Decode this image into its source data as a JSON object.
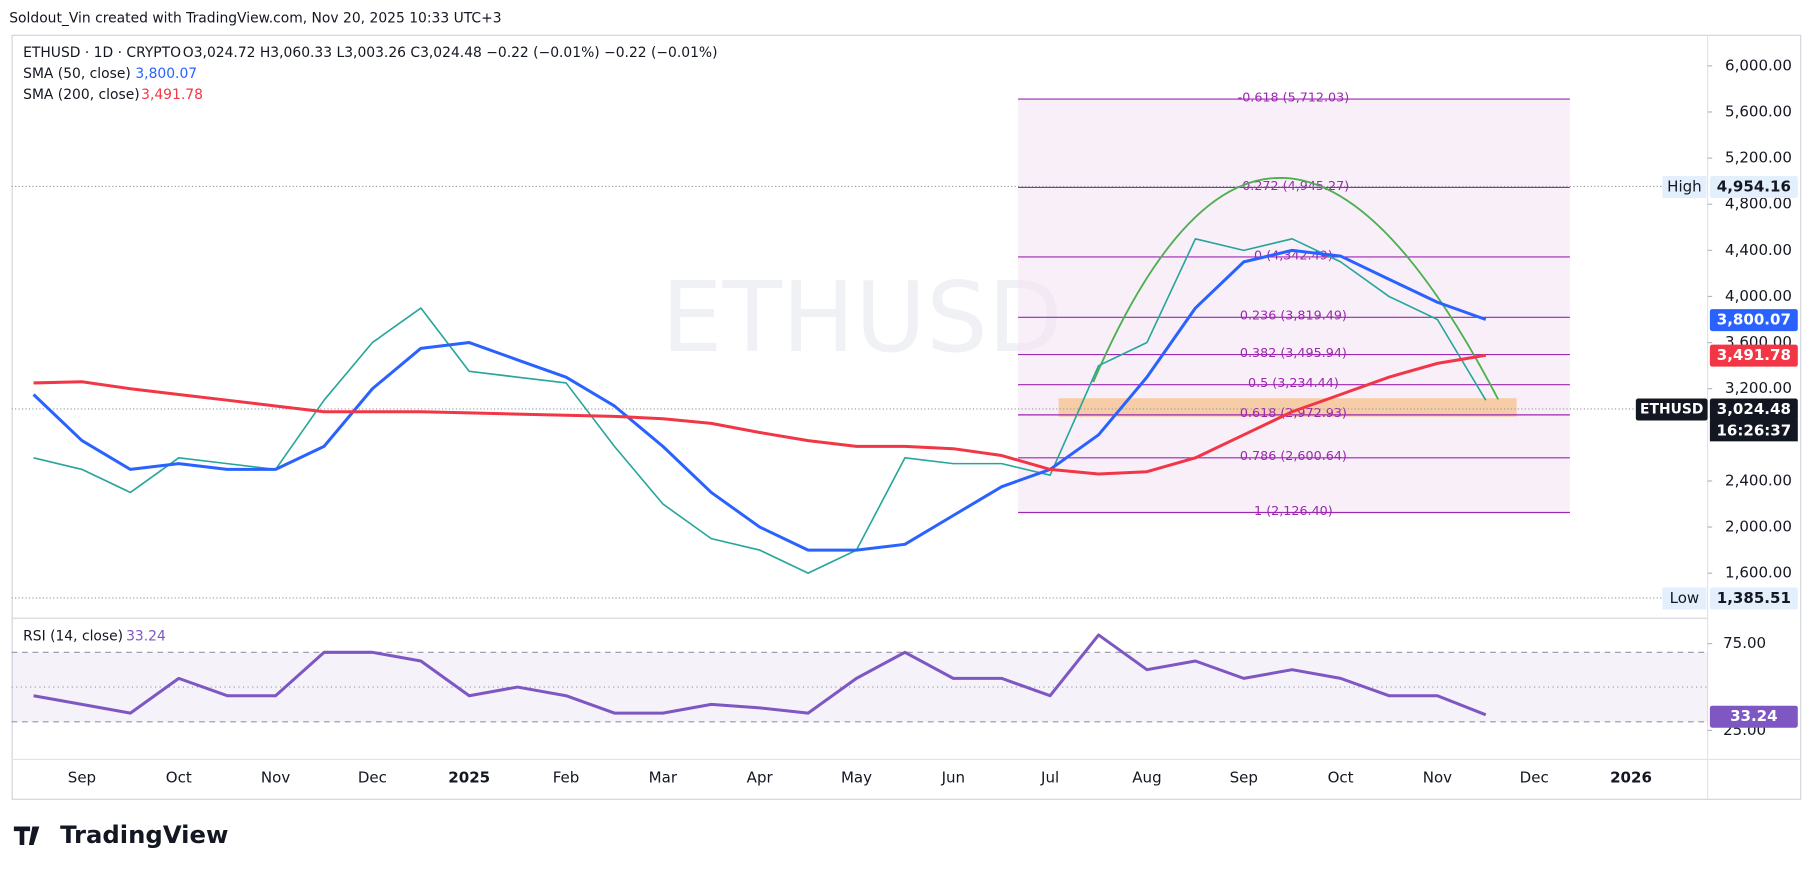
{
  "header": {
    "credit": "Soldout_Vin created with TradingView.com, Nov 20, 2025 10:33 UTC+3",
    "watermark": "ETHUSD",
    "brand": "TradingView"
  },
  "chart_data": [
    {
      "type": "line",
      "ohlc_text": "O3,024.72 H3,060.33 L3,003.26 C3,024.48 −0.22 (−0.01%) −0.22 (−0.01%)",
      "categories": [
        null,
        "Sep",
        null,
        "Oct",
        null,
        "Nov",
        null,
        "Dec",
        null,
        "2025",
        null,
        "Feb",
        null,
        "Mar",
        null,
        "Apr",
        null,
        "May",
        null,
        "Jun",
        null,
        "Jul",
        null,
        "Aug",
        null,
        "Sep",
        null,
        "Oct",
        null,
        "Nov",
        null,
        "Dec",
        null,
        "2026"
      ],
      "series": [
        {
          "name": "ETHUSD · 1D · CRYPTO",
          "color": "#26a69a",
          "values": [
            2600,
            2500,
            2300,
            2600,
            2550,
            2500,
            3100,
            3600,
            3900,
            3350,
            3300,
            3250,
            2700,
            2200,
            1900,
            1800,
            1600,
            1800,
            2600,
            2550,
            2550,
            2450,
            3400,
            3600,
            4500,
            4400,
            4500,
            4300,
            4000,
            3800,
            3100,
            null,
            null,
            null
          ]
        },
        {
          "name": "SMA (50, close)",
          "color": "#2962ff",
          "values": [
            3150,
            2750,
            2500,
            2550,
            2500,
            2500,
            2700,
            3200,
            3550,
            3600,
            3450,
            3300,
            3050,
            2700,
            2300,
            2000,
            1800,
            1800,
            1850,
            2100,
            2350,
            2500,
            2800,
            3300,
            3900,
            4300,
            4400,
            4350,
            4150,
            3950,
            3800,
            null,
            null,
            null
          ],
          "last": {
            "value": 3800.07,
            "label": "3,800.07"
          }
        },
        {
          "name": "SMA (200, close)",
          "color": "#f23645",
          "values": [
            3250,
            3260,
            3200,
            3150,
            3100,
            3050,
            3000,
            3000,
            3000,
            2990,
            2980,
            2970,
            2960,
            2940,
            2900,
            2820,
            2750,
            2700,
            2700,
            2680,
            2620,
            2500,
            2460,
            2480,
            2600,
            2800,
            3000,
            3150,
            3300,
            3420,
            3490,
            null,
            null,
            null
          ],
          "last": {
            "value": 3491.78,
            "label": "3,491.78"
          }
        }
      ],
      "ylim": [
        1250,
        6270
      ],
      "yticks": [
        {
          "value": 1600,
          "label": "1,600.00"
        },
        {
          "value": 2000,
          "label": "2,000.00"
        },
        {
          "value": 2400,
          "label": "2,400.00"
        },
        {
          "value": 3200,
          "label": "3,200.00"
        },
        {
          "value": 3600,
          "label": "3,600.00"
        },
        {
          "value": 4000,
          "label": "4,000.00"
        },
        {
          "value": 4400,
          "label": "4,400.00"
        },
        {
          "value": 4800,
          "label": "4,800.00"
        },
        {
          "value": 5200,
          "label": "5,200.00"
        },
        {
          "value": 5600,
          "label": "5,600.00"
        },
        {
          "value": 6000,
          "label": "6,000.00"
        }
      ],
      "fib_levels": [
        {
          "value": 5712.03,
          "label": "-0.618 (5,712.03)"
        },
        {
          "value": 4945.27,
          "label": "-0.272 (4,945.27)"
        },
        {
          "value": 4342.49,
          "label": "0 (4,342.49)"
        },
        {
          "value": 3819.49,
          "label": "0.236 (3,819.49)"
        },
        {
          "value": 3495.94,
          "label": "0.382 (3,495.94)"
        },
        {
          "value": 3234.44,
          "label": "0.5 (3,234.44)"
        },
        {
          "value": 2972.93,
          "label": "0.618 (2,972.93)"
        },
        {
          "value": 2600.64,
          "label": "0.786 (2,600.64)"
        },
        {
          "value": 2126.4,
          "label": "1 (2,126.40)"
        }
      ],
      "high": {
        "name": "High",
        "value": 4954.16,
        "label": "4,954.16"
      },
      "low": {
        "name": "Low",
        "value": 1385.51,
        "label": "1,385.51"
      },
      "last_price": {
        "symbol": "ETHUSD",
        "value": 3024.48,
        "label": "3,024.48",
        "countdown": "16:26:37"
      }
    },
    {
      "type": "line",
      "series": [
        {
          "name": "RSI (14, close)",
          "color": "#7e57c2",
          "values": [
            45,
            40,
            35,
            55,
            45,
            45,
            70,
            70,
            65,
            45,
            50,
            45,
            35,
            35,
            40,
            38,
            35,
            55,
            70,
            55,
            55,
            45,
            80,
            60,
            65,
            55,
            60,
            55,
            45,
            45,
            34,
            null,
            null,
            null
          ],
          "last": {
            "value": 33.24,
            "label": "33.24"
          }
        }
      ],
      "ylim": [
        9,
        87
      ],
      "yticks": [
        {
          "value": 25,
          "label": "25.00"
        },
        {
          "value": 75,
          "label": "75.00"
        }
      ],
      "bands": [
        70,
        50,
        30
      ]
    }
  ]
}
